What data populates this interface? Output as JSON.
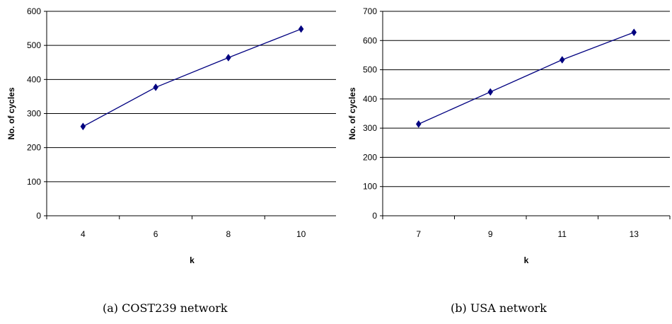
{
  "captions": {
    "a": "(a) COST239 network",
    "b": "(b) USA network"
  },
  "colors": {
    "line": "#000080",
    "marker": "#000080",
    "grid": "#000000"
  },
  "chart_data": [
    {
      "type": "line",
      "title": "",
      "xlabel": "k",
      "ylabel": "No. of cycles",
      "categories": [
        "4",
        "6",
        "8",
        "10"
      ],
      "series": [
        {
          "values": [
            262,
            377,
            464,
            548
          ]
        }
      ],
      "ylim": [
        0,
        600
      ],
      "yticks": [
        0,
        100,
        200,
        300,
        400,
        500,
        600
      ],
      "grid": true,
      "marker": "diamond"
    },
    {
      "type": "line",
      "title": "",
      "xlabel": "k",
      "ylabel": "No. of cycles",
      "categories": [
        "7",
        "9",
        "11",
        "13"
      ],
      "series": [
        {
          "values": [
            314,
            424,
            534,
            628
          ]
        }
      ],
      "ylim": [
        0,
        700
      ],
      "yticks": [
        0,
        100,
        200,
        300,
        400,
        500,
        600,
        700
      ],
      "grid": true,
      "marker": "diamond"
    }
  ]
}
